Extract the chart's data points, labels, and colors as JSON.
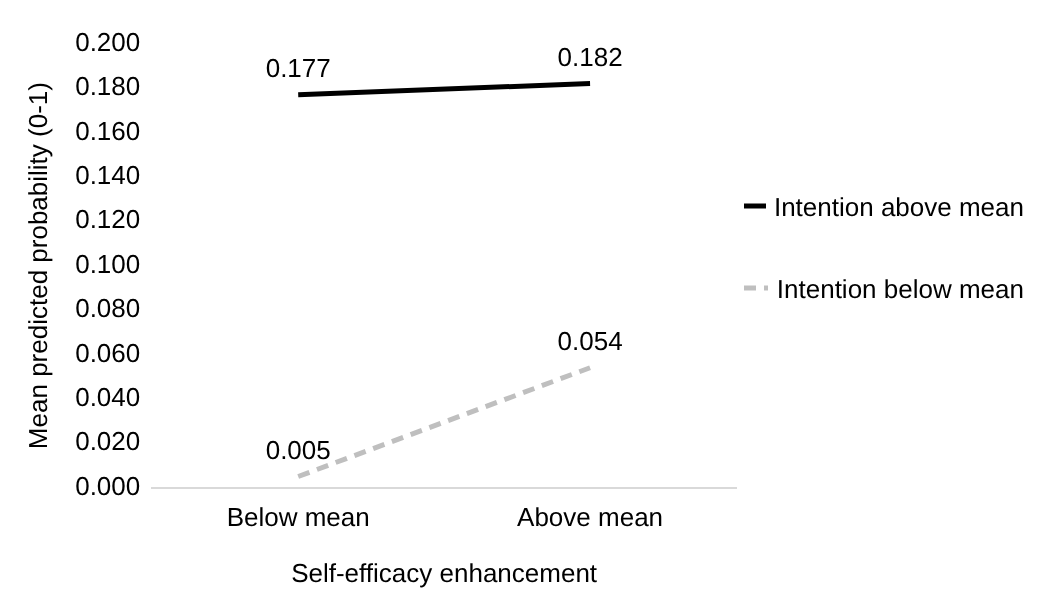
{
  "chart_data": {
    "type": "line",
    "xlabel": "Self-efficacy enhancement",
    "ylabel": "Mean predicted probability (0-1)",
    "categories": [
      "Below mean",
      "Above mean"
    ],
    "series": [
      {
        "name": "Intention above mean",
        "color": "#000000",
        "values": [
          0.177,
          0.182
        ],
        "line_style": "solid"
      },
      {
        "name": "Intention below mean",
        "color": "#bfbfbf",
        "values": [
          0.005,
          0.054
        ],
        "line_style": "dashed"
      }
    ],
    "ylim": [
      0,
      0.2
    ],
    "yticks": [
      {
        "value": 0,
        "label": "0.000"
      },
      {
        "value": 0.02,
        "label": "0.020"
      },
      {
        "value": 0.04,
        "label": "0.040"
      },
      {
        "value": 0.06,
        "label": "0.060"
      },
      {
        "value": 0.08,
        "label": "0.080"
      },
      {
        "value": 0.1,
        "label": "0.100"
      },
      {
        "value": 0.12,
        "label": "0.120"
      },
      {
        "value": 0.14,
        "label": "0.140"
      },
      {
        "value": 0.16,
        "label": "0.160"
      },
      {
        "value": 0.18,
        "label": "0.180"
      },
      {
        "value": 0.2,
        "label": "0.200"
      }
    ],
    "grid": false,
    "legend": "right",
    "marker": "none",
    "data_labels": true
  }
}
